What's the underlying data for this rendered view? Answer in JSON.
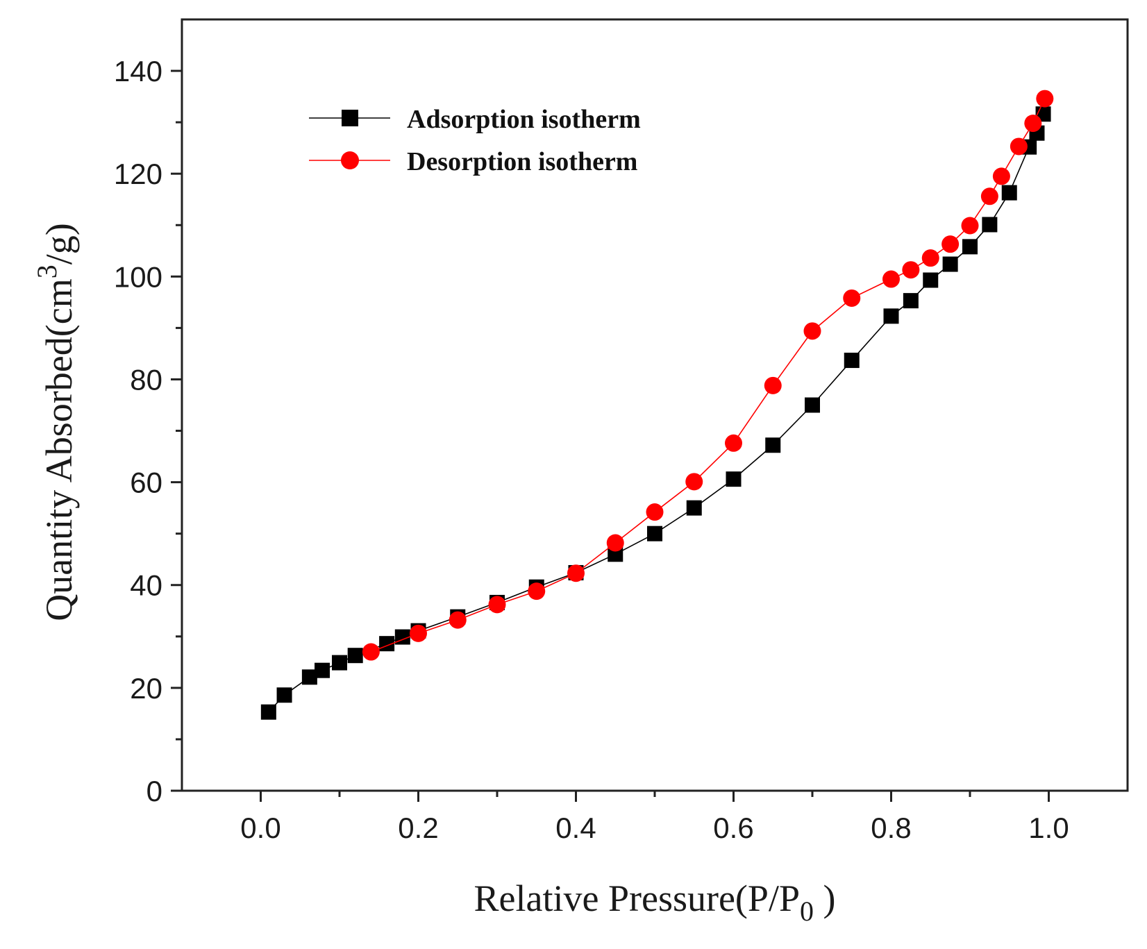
{
  "chart_data": {
    "type": "line",
    "title": "",
    "xlabel": "Relative Pressure(P/P",
    "xlabel_sub": "0",
    "xlabel_tail": " )",
    "ylabel": "Quantity Absorbed(cm",
    "ylabel_sup": "3",
    "ylabel_tail": "/g)",
    "xlim": [
      -0.1,
      1.1
    ],
    "ylim": [
      0,
      150
    ],
    "xticks": [
      0.0,
      0.2,
      0.4,
      0.6,
      0.8,
      1.0
    ],
    "xtick_labels": [
      "0.0",
      "0.2",
      "0.4",
      "0.6",
      "0.8",
      "1.0"
    ],
    "yticks": [
      0,
      20,
      40,
      60,
      80,
      100,
      120,
      140
    ],
    "ytick_labels": [
      "0",
      "20",
      "40",
      "60",
      "80",
      "100",
      "120",
      "140"
    ],
    "grid": false,
    "legend_position": "top-left",
    "series": [
      {
        "name": "Adsorption isotherm",
        "color": "#000000",
        "marker": "square",
        "x": [
          0.01,
          0.03,
          0.062,
          0.078,
          0.1,
          0.12,
          0.16,
          0.18,
          0.2,
          0.25,
          0.3,
          0.35,
          0.4,
          0.45,
          0.5,
          0.55,
          0.6,
          0.65,
          0.7,
          0.75,
          0.8,
          0.825,
          0.85,
          0.875,
          0.9,
          0.925,
          0.95,
          0.975,
          0.985,
          0.993
        ],
        "y": [
          15.3,
          18.6,
          22.1,
          23.4,
          24.9,
          26.3,
          28.6,
          29.9,
          31.1,
          33.8,
          36.6,
          39.6,
          42.4,
          46.0,
          50.0,
          55.0,
          60.6,
          67.2,
          75.0,
          83.7,
          92.3,
          95.3,
          99.3,
          102.4,
          105.8,
          110.1,
          116.3,
          125.2,
          127.9,
          131.6
        ]
      },
      {
        "name": "Desorption isotherm",
        "color": "#ff0000",
        "marker": "circle",
        "x": [
          0.14,
          0.2,
          0.25,
          0.3,
          0.35,
          0.4,
          0.45,
          0.5,
          0.55,
          0.6,
          0.65,
          0.7,
          0.75,
          0.8,
          0.825,
          0.85,
          0.875,
          0.9,
          0.925,
          0.94,
          0.962,
          0.98,
          0.995
        ],
        "y": [
          27.0,
          30.6,
          33.2,
          36.2,
          38.8,
          42.3,
          48.2,
          54.2,
          60.1,
          67.6,
          78.8,
          89.4,
          95.8,
          99.5,
          101.3,
          103.6,
          106.3,
          109.9,
          115.6,
          119.5,
          125.3,
          129.8,
          134.6
        ]
      }
    ]
  }
}
